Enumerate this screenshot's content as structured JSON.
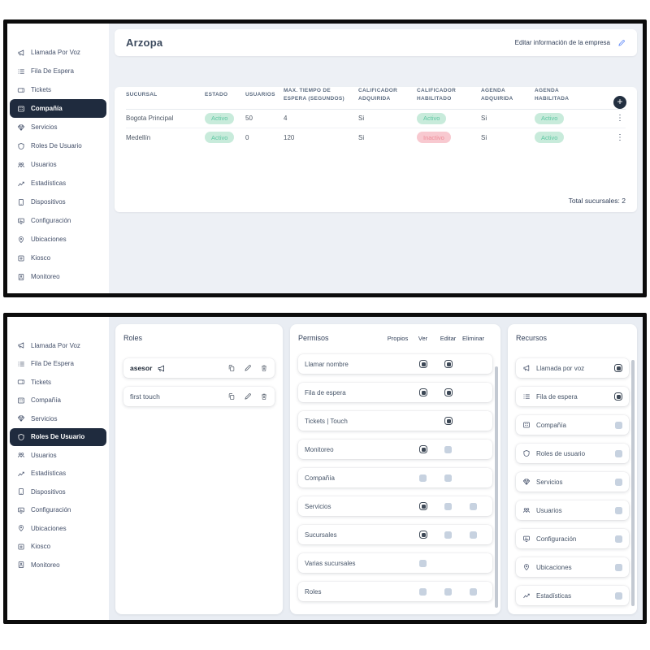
{
  "colors": {
    "active_navy": "#1f2b3e",
    "badge_green_bg": "#c8ebdb",
    "badge_green_text": "#5ec7a2",
    "badge_red_bg": "#f8c9d0",
    "badge_red_text": "#ee8d99",
    "edit_blue": "#4e7df7"
  },
  "sidebar": {
    "items": [
      {
        "label": "Llamada Por Voz",
        "icon": "megaphone"
      },
      {
        "label": "Fila De Espera",
        "icon": "list"
      },
      {
        "label": "Tickets",
        "icon": "ticket"
      },
      {
        "label": "Compañía",
        "icon": "company"
      },
      {
        "label": "Servicios",
        "icon": "services"
      },
      {
        "label": "Roles De Usuario",
        "icon": "shield"
      },
      {
        "label": "Usuarios",
        "icon": "users"
      },
      {
        "label": "Estadísticas",
        "icon": "stats"
      },
      {
        "label": "Dispositivos",
        "icon": "devices"
      },
      {
        "label": "Configuración",
        "icon": "config"
      },
      {
        "label": "Ubicaciones",
        "icon": "pin"
      },
      {
        "label": "Kiosco",
        "icon": "kiosk"
      },
      {
        "label": "Monitoreo",
        "icon": "monitor"
      }
    ]
  },
  "panel_top": {
    "sidebar_active": "Compañía",
    "header": {
      "title": "Arzopa",
      "edit_label": "Editar información de la empresa",
      "edit_icon": "pencil"
    },
    "table": {
      "add_glyph": "+",
      "kebab_glyph": "⋮",
      "columns": [
        "SUCURSAL",
        "ESTADO",
        "USUARIOS",
        "MAX. TIEMPO DE ESPERA (SEGUNDOS)",
        "CALIFICADOR ADQUIRIDA",
        "CALIFICADOR HABILITADO",
        "AGENDA ADQUIRIDA",
        "AGENDA HABILITADA"
      ],
      "rows": [
        {
          "cells": [
            "Bogota Principal",
            {
              "badge": "Activo",
              "type": "green"
            },
            "50",
            "4",
            "Si",
            {
              "badge": "Activo",
              "type": "green"
            },
            "Si",
            {
              "badge": "Activo",
              "type": "green"
            }
          ]
        },
        {
          "cells": [
            "Medellín",
            {
              "badge": "Activo",
              "type": "green"
            },
            "0",
            "120",
            "Si",
            {
              "badge": "Inactivo",
              "type": "red"
            },
            "Si",
            {
              "badge": "Activo",
              "type": "green"
            }
          ]
        }
      ],
      "footer": "Total sucursales: 2"
    }
  },
  "panel_bottom": {
    "sidebar_active": "Roles De Usuario",
    "roles": {
      "title": "Roles",
      "rows": [
        {
          "name": "asesor",
          "emphasis": true,
          "icon": "megaphone",
          "actions": [
            "copy",
            "pencil",
            "trash"
          ]
        },
        {
          "name": "first touch",
          "emphasis": false,
          "actions": [
            "copy",
            "pencil",
            "trash"
          ]
        }
      ]
    },
    "permisos": {
      "title": "Permisos",
      "columns": [
        "Propios",
        "Ver",
        "Editar",
        "Eliminar"
      ],
      "rows": [
        {
          "label": "Llamar nombre",
          "checks": {
            "Ver": "dark",
            "Editar": "dark"
          }
        },
        {
          "label": "Fila de espera",
          "checks": {
            "Ver": "dark",
            "Editar": "dark"
          }
        },
        {
          "label": "Tickets | Touch",
          "checks": {
            "Editar": "dark"
          }
        },
        {
          "label": "Monitoreo",
          "checks": {
            "Ver": "dark",
            "Editar": "light"
          }
        },
        {
          "label": "Compañía",
          "checks": {
            "Ver": "light",
            "Editar": "light"
          }
        },
        {
          "label": "Servicios",
          "checks": {
            "Ver": "dark",
            "Editar": "light",
            "Eliminar": "light"
          }
        },
        {
          "label": "Sucursales",
          "checks": {
            "Ver": "dark",
            "Editar": "light",
            "Eliminar": "light"
          }
        },
        {
          "label": "Varias sucursales",
          "checks": {
            "Ver": "light"
          }
        },
        {
          "label": "Roles",
          "checks": {
            "Ver": "light",
            "Editar": "light",
            "Eliminar": "light"
          }
        }
      ]
    },
    "recursos": {
      "title": "Recursos",
      "rows": [
        {
          "label": "Llamada por voz",
          "icon": "megaphone",
          "check": "dark"
        },
        {
          "label": "Fila de espera",
          "icon": "list",
          "check": "dark"
        },
        {
          "label": "Compañía",
          "icon": "company",
          "check": "light"
        },
        {
          "label": "Roles de usuario",
          "icon": "shield",
          "check": "light"
        },
        {
          "label": "Servicios",
          "icon": "services",
          "check": "light"
        },
        {
          "label": "Usuarios",
          "icon": "users",
          "check": "light"
        },
        {
          "label": "Configuración",
          "icon": "config",
          "check": "light"
        },
        {
          "label": "Ubicaciones",
          "icon": "pin",
          "check": "light"
        },
        {
          "label": "Estadísticas",
          "icon": "stats",
          "check": "light"
        }
      ]
    }
  }
}
